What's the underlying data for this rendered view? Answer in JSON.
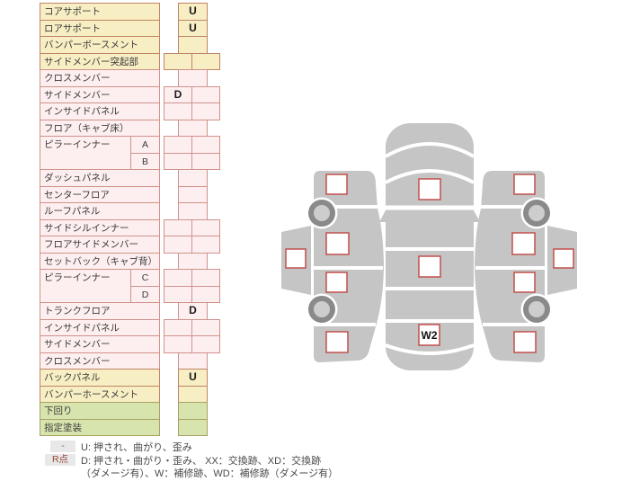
{
  "table": {
    "rows": [
      {
        "type": "simple",
        "label": "コアサポート",
        "color": "yellow",
        "layout": "single",
        "values": [
          "U"
        ]
      },
      {
        "type": "simple",
        "label": "ロアサポート",
        "color": "yellow",
        "layout": "single",
        "values": [
          "U"
        ]
      },
      {
        "type": "simple",
        "label": "バンパーボースメント",
        "color": "yellow",
        "layout": "single",
        "values": [
          ""
        ]
      },
      {
        "type": "simple",
        "label": "サイドメンバー突起部",
        "color": "yellow",
        "layout": "double",
        "values": [
          "",
          ""
        ]
      },
      {
        "type": "simple",
        "label": "クロスメンバー",
        "color": "pink",
        "layout": "single",
        "values": [
          ""
        ]
      },
      {
        "type": "simple",
        "label": "サイドメンバー",
        "color": "pink",
        "layout": "double",
        "values": [
          "D",
          ""
        ]
      },
      {
        "type": "simple",
        "label": "インサイドパネル",
        "color": "pink",
        "layout": "double",
        "values": [
          "",
          ""
        ]
      },
      {
        "type": "simple",
        "label": "フロア（キャブ床）",
        "color": "pink",
        "layout": "single",
        "values": [
          ""
        ]
      },
      {
        "type": "pair",
        "label": "ピラーインナー",
        "color": "pink",
        "subs": [
          {
            "sub": "A",
            "layout": "double",
            "values": [
              "",
              ""
            ]
          },
          {
            "sub": "B",
            "layout": "double",
            "values": [
              "",
              ""
            ]
          }
        ]
      },
      {
        "type": "simple",
        "label": "ダッシュパネル",
        "color": "pink",
        "layout": "single",
        "values": [
          ""
        ]
      },
      {
        "type": "simple",
        "label": "センターフロア",
        "color": "pink",
        "layout": "single",
        "values": [
          ""
        ]
      },
      {
        "type": "simple",
        "label": "ルーフパネル",
        "color": "pink",
        "layout": "single",
        "values": [
          ""
        ]
      },
      {
        "type": "simple",
        "label": "サイドシルインナー",
        "color": "pink",
        "layout": "double",
        "values": [
          "",
          ""
        ]
      },
      {
        "type": "simple",
        "label": "フロアサイドメンバー",
        "color": "pink",
        "layout": "double",
        "values": [
          "",
          ""
        ]
      },
      {
        "type": "simple",
        "label": "セットバック（キャブ背）",
        "color": "pink",
        "layout": "single",
        "values": [
          ""
        ]
      },
      {
        "type": "pair",
        "label": "ピラーインナー",
        "color": "pink",
        "subs": [
          {
            "sub": "C",
            "layout": "double",
            "values": [
              "",
              ""
            ]
          },
          {
            "sub": "D",
            "layout": "double",
            "values": [
              "",
              ""
            ]
          }
        ]
      },
      {
        "type": "simple",
        "label": "トランクフロア",
        "color": "pink",
        "layout": "single",
        "values": [
          "D"
        ]
      },
      {
        "type": "simple",
        "label": "インサイドパネル",
        "color": "pink",
        "layout": "double",
        "values": [
          "",
          ""
        ]
      },
      {
        "type": "simple",
        "label": "サイドメンバー",
        "color": "pink",
        "layout": "double",
        "values": [
          "",
          ""
        ]
      },
      {
        "type": "simple",
        "label": "クロスメンバー",
        "color": "pink",
        "layout": "single",
        "values": [
          ""
        ]
      },
      {
        "type": "simple",
        "label": "バックパネル",
        "color": "yellow",
        "layout": "single",
        "values": [
          "U"
        ]
      },
      {
        "type": "simple",
        "label": "バンパーホースメント",
        "color": "yellow",
        "layout": "single",
        "values": [
          ""
        ]
      },
      {
        "type": "simple",
        "label": "下回り",
        "color": "green",
        "layout": "single",
        "values": [
          ""
        ]
      },
      {
        "type": "simple",
        "label": "指定塗装",
        "color": "green",
        "layout": "single",
        "values": [
          ""
        ]
      }
    ]
  },
  "legend": {
    "key1": "-",
    "line1": "U: 押され、曲がり、歪み",
    "key2": "R点",
    "line2": "D: 押され・曲がり・歪み、 XX：交換跡、XD：交換跡",
    "line3": "（ダメージ有）、W：補修跡、WD：補修跡（ダメージ有）"
  },
  "diagram": {
    "markers": {
      "top_hood": "",
      "top_roof": "",
      "top_trunk": "W2",
      "left_front_fender": "",
      "left_front_door": "",
      "left_cab": "",
      "left_rear_door": "",
      "left_rear_fender": "",
      "right_front_fender": "",
      "right_front_door": "",
      "right_cab": "",
      "right_rear_door": "",
      "right_rear_fender": ""
    }
  },
  "colors": {
    "row_yellow": "#f7eec3",
    "row_pink": "#fdeff0",
    "row_green": "#d8e4ae",
    "border_red": "#c08467",
    "car_body_gray": "#c5c5c5",
    "wheel_gray": "#8a8a8a",
    "marker_border_red": "#c0504d",
    "legend_key_bg": "#e8e8e8"
  }
}
